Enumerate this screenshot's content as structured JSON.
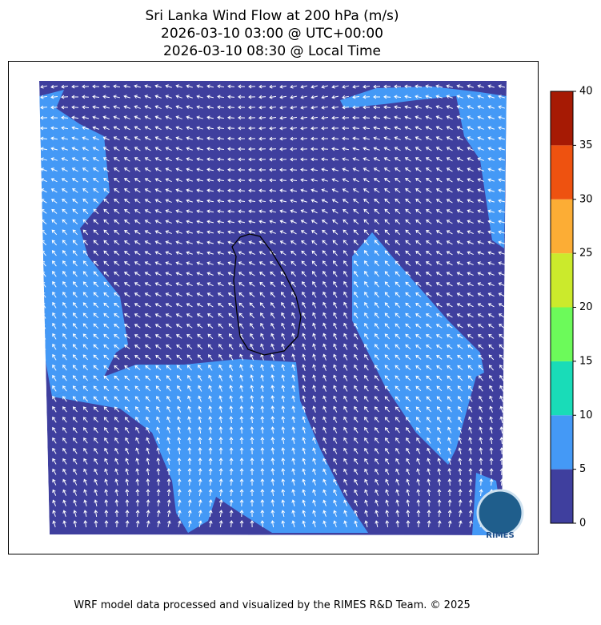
{
  "title": [
    "Sri Lanka Wind Flow at 200 hPa (m/s)",
    "2026-03-10 03:00 @ UTC+00:00",
    "2026-03-10 08:30 @ Local Time"
  ],
  "colorbar": {
    "ticks": [
      0,
      5,
      10,
      15,
      20,
      25,
      30,
      35,
      40
    ],
    "colors": [
      "#3f3f9e",
      "#4499f6",
      "#19dcb8",
      "#6cfa5a",
      "#cbea2c",
      "#fcad35",
      "#ee5210",
      "#a61a04"
    ]
  },
  "logo": "RIMES",
  "footer": "WRF model data processed and visualized by the RIMES R&D Team. © 2025"
}
